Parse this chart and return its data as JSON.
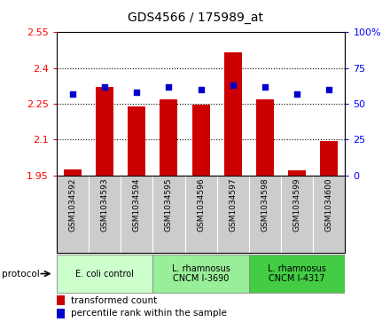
{
  "title": "GDS4566 / 175989_at",
  "samples": [
    "GSM1034592",
    "GSM1034593",
    "GSM1034594",
    "GSM1034595",
    "GSM1034596",
    "GSM1034597",
    "GSM1034598",
    "GSM1034599",
    "GSM1034600"
  ],
  "bar_values": [
    1.975,
    2.32,
    2.24,
    2.27,
    2.245,
    2.465,
    2.27,
    1.972,
    2.095
  ],
  "percentile_values": [
    57,
    62,
    58,
    62,
    60,
    63,
    62,
    57,
    60
  ],
  "bar_color": "#cc0000",
  "dot_color": "#0000cc",
  "ylim_left": [
    1.95,
    2.55
  ],
  "ylim_right": [
    0,
    100
  ],
  "yticks_left": [
    1.95,
    2.1,
    2.25,
    2.4,
    2.55
  ],
  "ytick_labels_left": [
    "1.95",
    "2.1",
    "2.25",
    "2.4",
    "2.55"
  ],
  "yticks_right": [
    0,
    25,
    50,
    75,
    100
  ],
  "ytick_labels_right": [
    "0",
    "25",
    "50",
    "75",
    "100%"
  ],
  "protocol_groups": [
    {
      "label": "E. coli control",
      "start": 0,
      "end": 3,
      "color": "#ccffcc"
    },
    {
      "label": "L. rhamnosus\nCNCM I-3690",
      "start": 3,
      "end": 6,
      "color": "#99ee99"
    },
    {
      "label": "L. rhamnosus\nCNCM I-4317",
      "start": 6,
      "end": 9,
      "color": "#44cc44"
    }
  ],
  "legend_bar_label": "transformed count",
  "legend_dot_label": "percentile rank within the sample",
  "protocol_label": "protocol",
  "tick_area_color": "#cccccc",
  "bar_width": 0.55
}
